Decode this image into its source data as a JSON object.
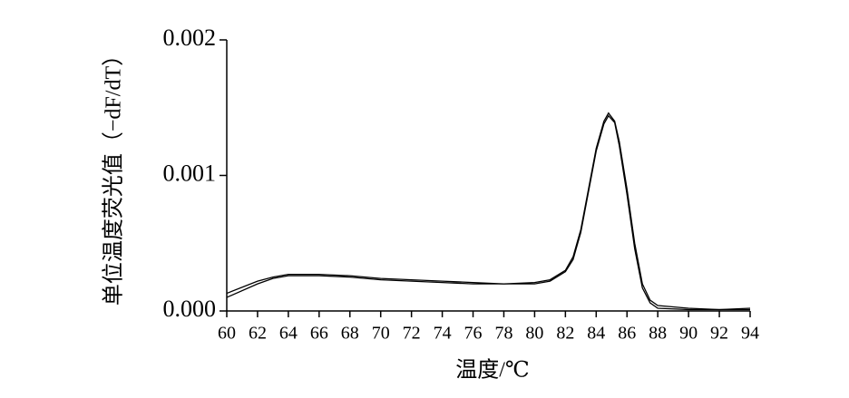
{
  "chart_data": {
    "type": "line",
    "xlabel": "温度/℃",
    "ylabel": "单位温度荧光值（−dF/dT）",
    "x": [
      60,
      62,
      63,
      64,
      66,
      68,
      70,
      72,
      74,
      76,
      78,
      80,
      81,
      82,
      82.5,
      83,
      83.5,
      84,
      84.5,
      84.8,
      85.2,
      85.5,
      86,
      86.5,
      87,
      87.5,
      88,
      90,
      92,
      94
    ],
    "series": [
      {
        "color": "#000000",
        "values": [
          0.00013,
          0.00022,
          0.00025,
          0.00027,
          0.00027,
          0.00026,
          0.00024,
          0.00023,
          0.00022,
          0.00021,
          0.0002,
          0.00021,
          0.00023,
          0.0003,
          0.0004,
          0.0006,
          0.0009,
          0.0012,
          0.0014,
          0.00146,
          0.0014,
          0.00125,
          0.0009,
          0.0005,
          0.0002,
          8e-05,
          4e-05,
          2e-05,
          1e-05,
          2e-05
        ]
      },
      {
        "color": "#000000",
        "values": [
          0.0001,
          0.0002,
          0.00024,
          0.00026,
          0.00026,
          0.00025,
          0.00023,
          0.00022,
          0.00021,
          0.0002,
          0.0002,
          0.0002,
          0.00022,
          0.00029,
          0.00038,
          0.00058,
          0.00088,
          0.00118,
          0.00138,
          0.00144,
          0.00139,
          0.00122,
          0.00086,
          0.00046,
          0.00017,
          6e-05,
          2e-05,
          1e-05,
          1e-05,
          1e-05
        ]
      }
    ],
    "xlim": [
      60,
      94
    ],
    "ylim": [
      0,
      0.002
    ],
    "xticks": [
      60,
      62,
      64,
      66,
      68,
      70,
      72,
      74,
      76,
      78,
      80,
      82,
      84,
      86,
      88,
      90,
      92,
      94
    ],
    "yticks": [
      {
        "value": 0,
        "label": "0.000"
      },
      {
        "value": 0.001,
        "label": "0.001"
      },
      {
        "value": 0.002,
        "label": "0.002"
      }
    ]
  }
}
